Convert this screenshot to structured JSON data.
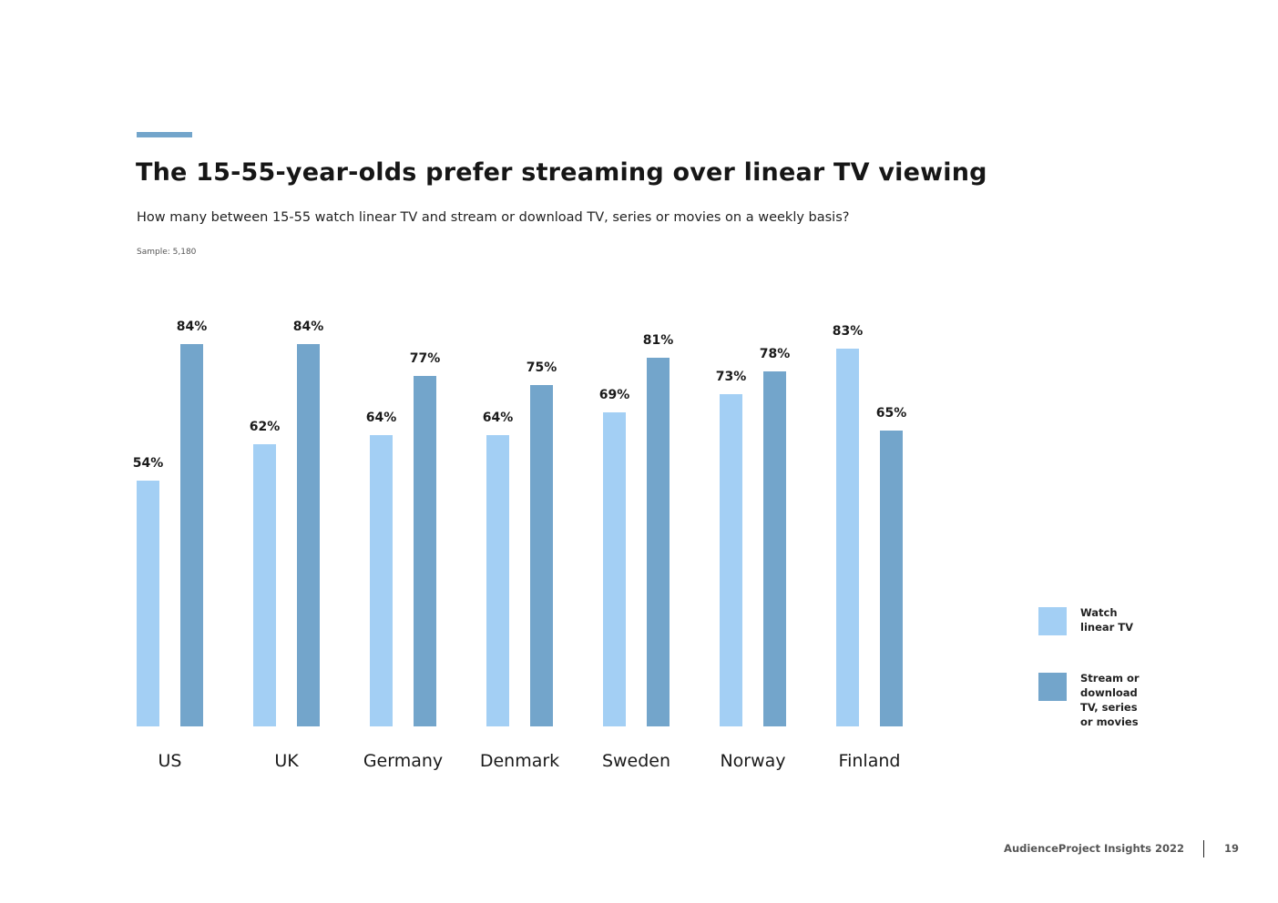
{
  "page": {
    "title": "The 15-55-year-olds prefer streaming over linear TV viewing",
    "subtitle": "How many between 15-55 watch linear TV and stream or download TV, series or movies on a weekly basis?",
    "sample": "Sample: 5,180",
    "accent_color": "#73a5cb"
  },
  "chart_data": {
    "type": "bar",
    "title": "The 15-55-year-olds prefer streaming over linear TV viewing",
    "xlabel": "",
    "ylabel": "",
    "ylim": [
      0,
      100
    ],
    "grid": false,
    "legend_position": "bottom-right",
    "categories": [
      "US",
      "UK",
      "Germany",
      "Denmark",
      "Sweden",
      "Norway",
      "Finland"
    ],
    "series": [
      {
        "name": "Watch linear TV",
        "color": "#a3cff4",
        "values": [
          54,
          62,
          64,
          64,
          69,
          73,
          83
        ]
      },
      {
        "name": "Stream or download TV, series or movies",
        "color": "#73a5cb",
        "values": [
          84,
          84,
          77,
          75,
          81,
          78,
          65
        ]
      }
    ],
    "value_suffix": "%"
  },
  "legend": [
    {
      "label": "Watch linear TV",
      "color": "#a3cff4"
    },
    {
      "label": "Stream or download TV, series or movies",
      "color": "#73a5cb"
    }
  ],
  "footer": {
    "source": "AudienceProject Insights 2022",
    "page_number": "19"
  }
}
